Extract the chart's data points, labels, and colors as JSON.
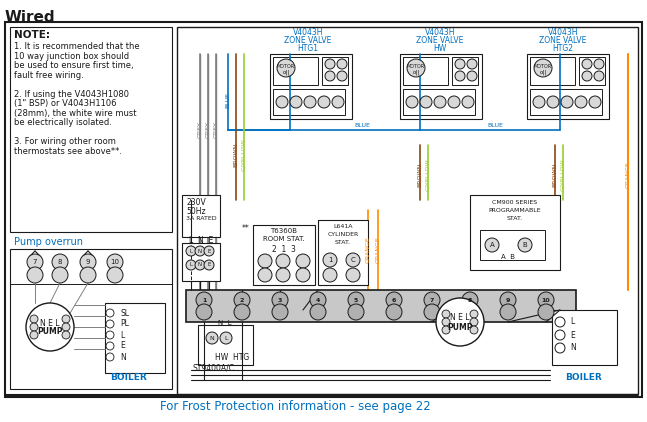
{
  "title": "Wired",
  "title_color": "#1a1a1a",
  "bg_color": "#ffffff",
  "note_title": "NOTE:",
  "note_lines": [
    "1. It is recommended that the",
    "10 way junction box should",
    "be used to ensure first time,",
    "fault free wiring.",
    "",
    "2. If using the V4043H1080",
    "(1\" BSP) or V4043H1106",
    "(28mm), the white wire must",
    "be electrically isolated.",
    "",
    "3. For wiring other room",
    "thermostats see above**."
  ],
  "pump_overrun_label": "Pump overrun",
  "frost_text": "For Frost Protection information - see page 22",
  "frost_text_color": "#0070c0",
  "wire_colors": {
    "grey": "#808080",
    "blue": "#0070c0",
    "brown": "#8B4513",
    "gyellow": "#9acd32",
    "orange": "#FF8C00",
    "black": "#1a1a1a"
  }
}
